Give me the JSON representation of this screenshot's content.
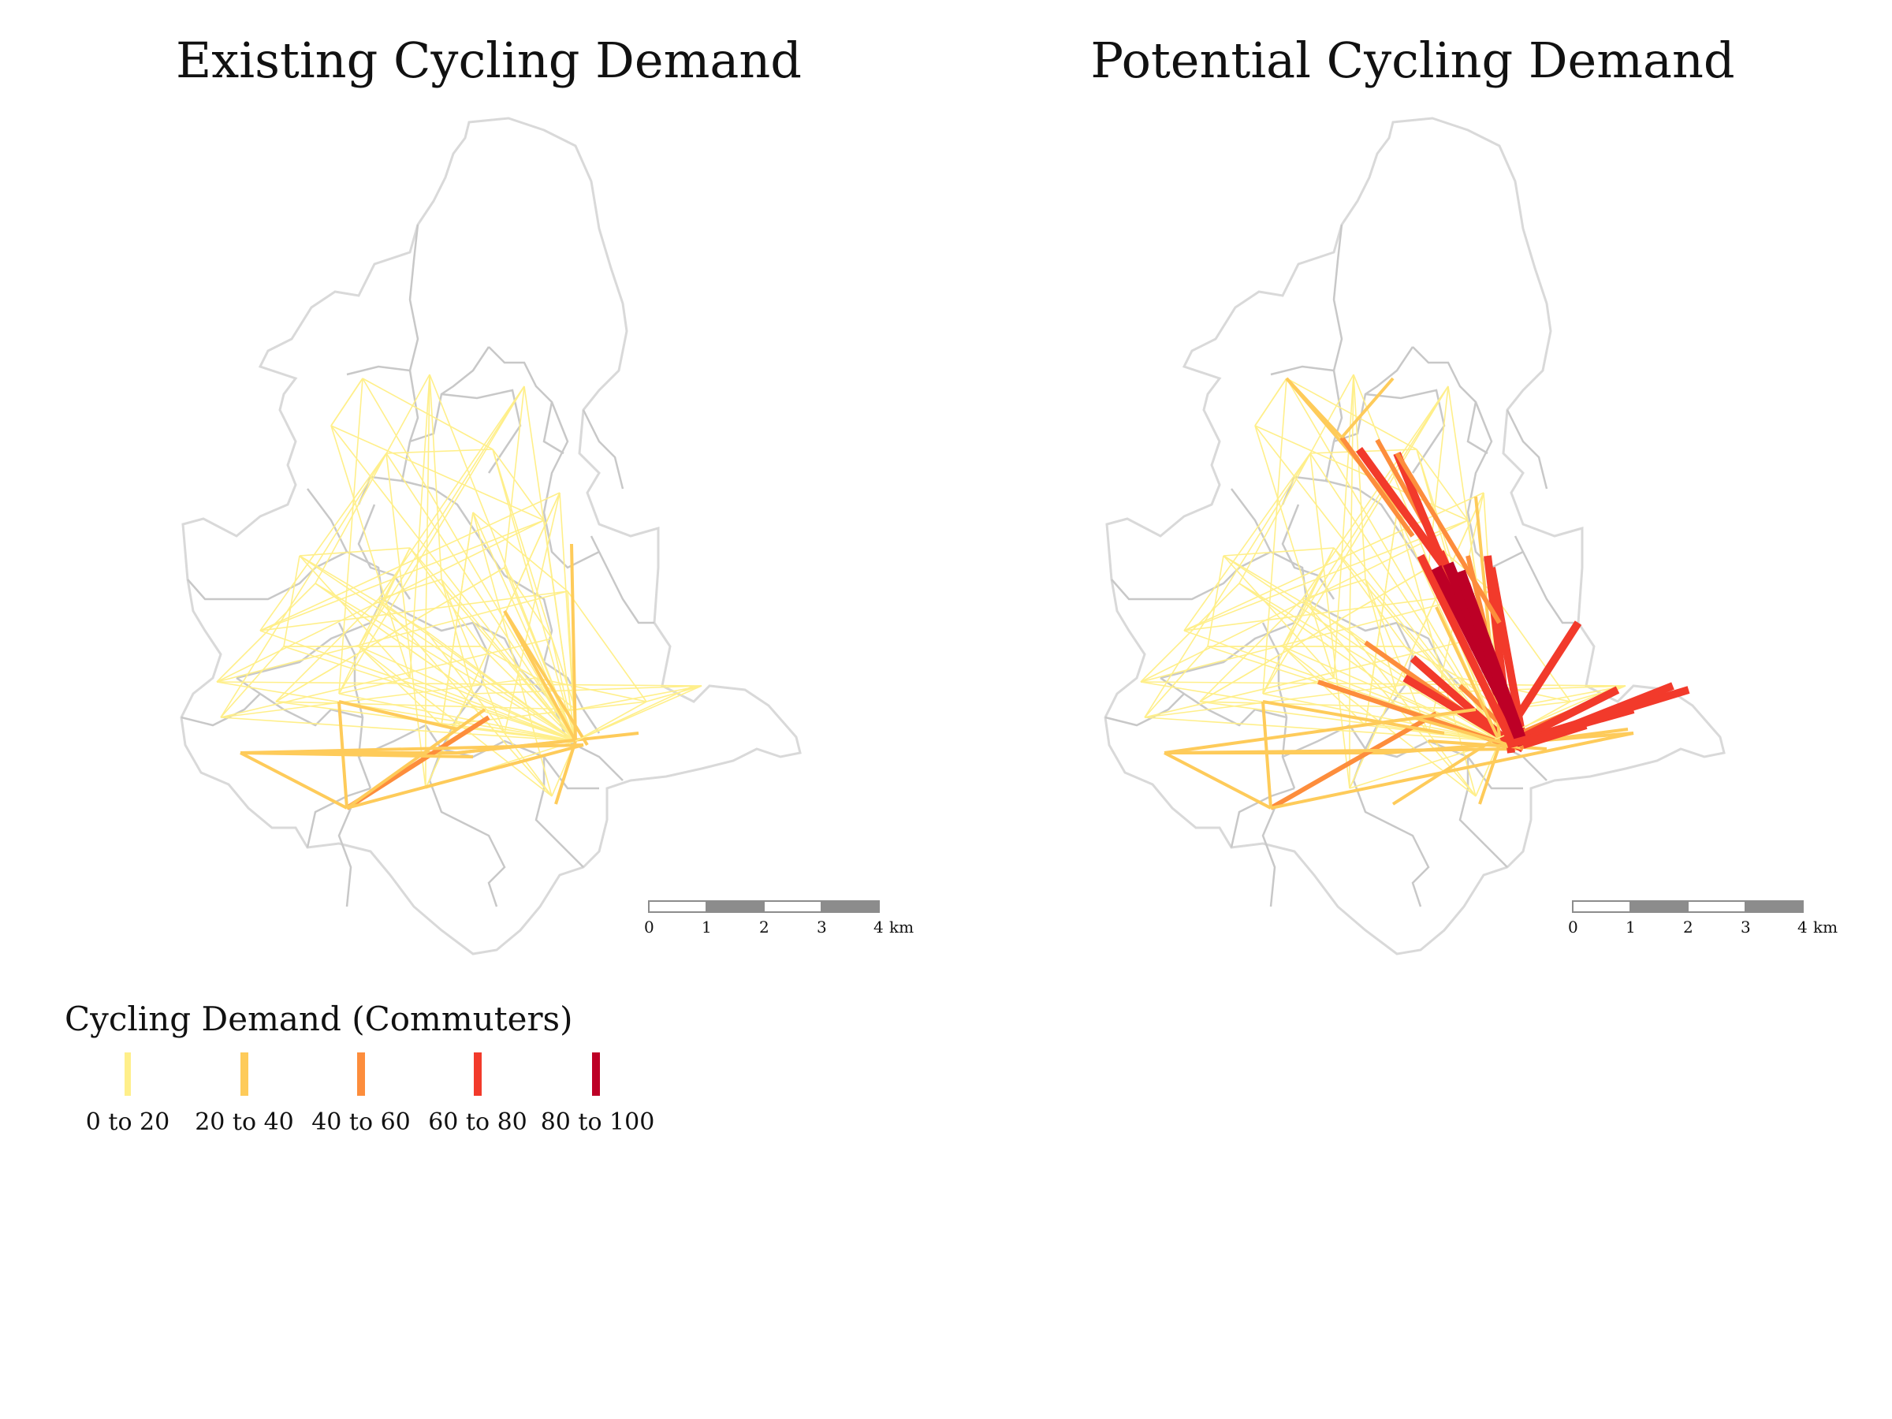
{
  "panels": [
    {
      "title": "Existing Cycling Demand"
    },
    {
      "title": "Potential Cycling Demand"
    }
  ],
  "scale_bar": {
    "ticks": [
      "0",
      "1",
      "2",
      "3",
      "4"
    ],
    "unit": "km"
  },
  "legend": {
    "title": "Cycling Demand (Commuters)",
    "classes": [
      {
        "label": "0 to 20",
        "color": "#ffef8a"
      },
      {
        "label": "20 to 40",
        "color": "#fecb5a"
      },
      {
        "label": "40 to 60",
        "color": "#fd8d3c"
      },
      {
        "label": "60 to 80",
        "color": "#f23a2b"
      },
      {
        "label": "80 to 100",
        "color": "#bd0026"
      }
    ]
  },
  "colors": {
    "boundary": "#d9d9d9",
    "inner_boundary": "#c8c8c8"
  }
}
